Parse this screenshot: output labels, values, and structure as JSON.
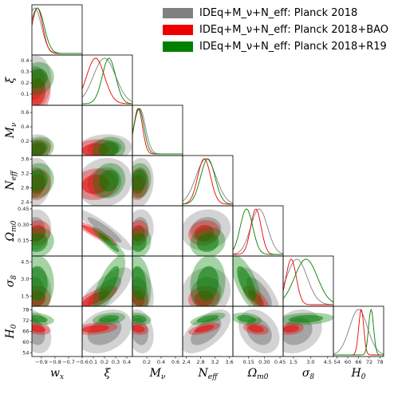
{
  "legend": {
    "items": [
      {
        "label": "IDEq+M_ν+N_eff: Planck 2018",
        "color": "#808080"
      },
      {
        "label": "IDEq+M_ν+N_eff: Planck 2018+BAO",
        "color": "#ee0000"
      },
      {
        "label": "IDEq+M_ν+N_eff: Planck 2018+R19",
        "color": "#008000"
      }
    ]
  },
  "chart_data": {
    "type": "triangle",
    "parameters": [
      {
        "key": "wx",
        "label": "w_x",
        "range": [
          -0.97,
          -0.6
        ],
        "ticks": [
          {
            "v": -0.9,
            "t": "−0.9"
          },
          {
            "v": -0.8,
            "t": "−0.8"
          },
          {
            "v": -0.7,
            "t": "−0.7"
          },
          {
            "v": -0.6,
            "t": "−0.6"
          }
        ]
      },
      {
        "key": "xi",
        "label": "ξ",
        "range": [
          0.0,
          0.45
        ],
        "ticks": [
          {
            "v": 0.1,
            "t": "0.1"
          },
          {
            "v": 0.2,
            "t": "0.2"
          },
          {
            "v": 0.3,
            "t": "0.3"
          },
          {
            "v": 0.4,
            "t": "0.4"
          }
        ]
      },
      {
        "key": "mnu",
        "label": "M_ν",
        "range": [
          0.0,
          0.7
        ],
        "ticks": [
          {
            "v": 0.2,
            "t": "0.2"
          },
          {
            "v": 0.4,
            "t": "0.4"
          },
          {
            "v": 0.6,
            "t": "0.6"
          }
        ]
      },
      {
        "key": "neff",
        "label": "N_eff",
        "range": [
          2.3,
          3.7
        ],
        "ticks": [
          {
            "v": 2.4,
            "t": "2.4"
          },
          {
            "v": 2.8,
            "t": "2.8"
          },
          {
            "v": 3.2,
            "t": "3.2"
          },
          {
            "v": 3.6,
            "t": "3.6"
          }
        ]
      },
      {
        "key": "om",
        "label": "Ω_m0",
        "range": [
          0.0,
          0.48
        ],
        "ticks": [
          {
            "v": 0.15,
            "t": "0.15"
          },
          {
            "v": 0.3,
            "t": "0.30"
          },
          {
            "v": 0.45,
            "t": "0.45"
          }
        ]
      },
      {
        "key": "s8",
        "label": "σ_8",
        "range": [
          0.6,
          5.0
        ],
        "ticks": [
          {
            "v": 1.5,
            "t": "1.5"
          },
          {
            "v": 3.0,
            "t": "3.0"
          },
          {
            "v": 4.5,
            "t": "4.5"
          }
        ]
      },
      {
        "key": "h0",
        "label": "H_0",
        "range": [
          52,
          80
        ],
        "ticks": [
          {
            "v": 54,
            "t": "54"
          },
          {
            "v": 60,
            "t": "60"
          },
          {
            "v": 66,
            "t": "66"
          },
          {
            "v": 72,
            "t": "72"
          },
          {
            "v": 78,
            "t": "78"
          }
        ]
      }
    ],
    "series": [
      {
        "name": "IDEq+M_ν+N_eff: Planck 2018",
        "color": "#808080",
        "mean": [
          -0.95,
          0.2,
          0.1,
          2.95,
          0.25,
          1.8,
          66.0
        ],
        "sigma": [
          0.05,
          0.1,
          0.08,
          0.28,
          0.08,
          0.9,
          5.0
        ]
      },
      {
        "name": "IDEq+M_ν+N_eff: Planck 2018+BAO",
        "color": "#ee0000",
        "mean": [
          -0.93,
          0.12,
          0.08,
          2.9,
          0.22,
          1.3,
          67.5
        ],
        "sigma": [
          0.04,
          0.08,
          0.06,
          0.18,
          0.05,
          0.45,
          1.4
        ]
      },
      {
        "name": "IDEq+M_ν+N_eff: Planck 2018+R19",
        "color": "#008000",
        "mean": [
          -0.93,
          0.24,
          0.09,
          3.0,
          0.13,
          2.6,
          73.0
        ],
        "sigma": [
          0.05,
          0.06,
          0.07,
          0.2,
          0.06,
          1.0,
          1.4
        ]
      }
    ],
    "correlation": {
      "xi|wx": 0.1,
      "mnu|wx": 0.2,
      "mnu|xi": 0.1,
      "neff|wx": 0.1,
      "neff|xi": 0.1,
      "neff|mnu": 0.1,
      "om|wx": 0.1,
      "om|xi": -0.92,
      "om|mnu": 0.1,
      "om|neff": 0.1,
      "s8|wx": 0.0,
      "s8|xi": 0.75,
      "s8|mnu": -0.2,
      "s8|neff": 0.1,
      "s8|om": -0.7,
      "h0|wx": -0.3,
      "h0|xi": 0.3,
      "h0|mnu": -0.2,
      "h0|neff": 0.6,
      "h0|om": -0.3,
      "h0|s8": 0.2
    }
  }
}
